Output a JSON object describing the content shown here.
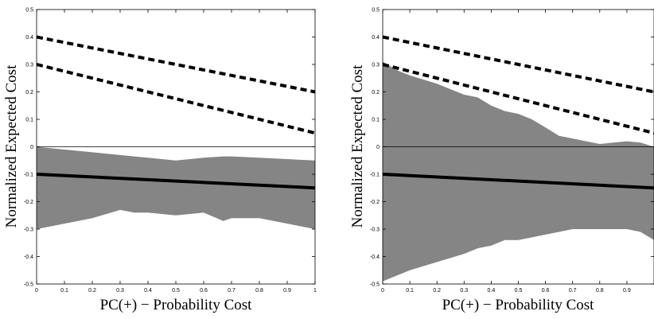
{
  "chart_data": [
    {
      "type": "line",
      "xlabel": "PC(+) − Probability Cost",
      "ylabel": "Normalized Expected Cost",
      "xlim": [
        0,
        1
      ],
      "ylim": [
        -0.5,
        0.5
      ],
      "xticks": [
        "0",
        "0.1",
        "0.2",
        "0.3",
        "0.4",
        "0.5",
        "0.6",
        "0.7",
        "0.8",
        "0.9",
        "1"
      ],
      "yticks": [
        "-0.5",
        "-0.4",
        "-0.3",
        "-0.2",
        "-0.1",
        "0",
        "0.1",
        "0.2",
        "0.3",
        "0.4",
        "0.5"
      ],
      "grid": false,
      "legend": "none",
      "colors": {
        "band": "#858585",
        "lines": "#000000"
      },
      "series": [
        {
          "style": "dashed",
          "x": [
            0,
            1
          ],
          "y": [
            0.4,
            0.2
          ]
        },
        {
          "style": "dashed",
          "x": [
            0,
            1
          ],
          "y": [
            0.3,
            0.05
          ]
        },
        {
          "style": "solid-thick",
          "x": [
            0,
            1
          ],
          "y": [
            -0.1,
            -0.15
          ]
        },
        {
          "style": "solid-thin",
          "x": [
            0,
            1
          ],
          "y": [
            0,
            0
          ]
        }
      ],
      "band": {
        "x": [
          0,
          0.1,
          0.2,
          0.3,
          0.35,
          0.4,
          0.5,
          0.6,
          0.67,
          0.7,
          0.8,
          0.9,
          1.0
        ],
        "upper": [
          0,
          -0.01,
          -0.02,
          -0.03,
          -0.035,
          -0.04,
          -0.05,
          -0.04,
          -0.035,
          -0.035,
          -0.04,
          -0.045,
          -0.05
        ],
        "lower": [
          -0.3,
          -0.28,
          -0.26,
          -0.23,
          -0.24,
          -0.24,
          -0.25,
          -0.24,
          -0.27,
          -0.26,
          -0.26,
          -0.28,
          -0.3
        ]
      }
    },
    {
      "type": "line",
      "xlabel": "PC(+) − Probability Cost",
      "ylabel": "Normalized Expected Cost",
      "xlim": [
        0,
        1
      ],
      "ylim": [
        -0.5,
        0.5
      ],
      "xticks": [
        "0",
        "0.1",
        "0.2",
        "0.3",
        "0.4",
        "0.5",
        "0.6",
        "0.7",
        "0.8",
        "0.9"
      ],
      "yticks": [
        "-0.5",
        "-0.4",
        "-0.3",
        "-0.2",
        "-0.1",
        "0",
        "0.1",
        "0.2",
        "0.3",
        "0.4",
        "0.5"
      ],
      "grid": false,
      "legend": "none",
      "colors": {
        "band": "#858585",
        "lines": "#000000"
      },
      "series": [
        {
          "style": "dashed",
          "x": [
            0,
            1
          ],
          "y": [
            0.4,
            0.2
          ]
        },
        {
          "style": "dashed",
          "x": [
            0,
            1
          ],
          "y": [
            0.3,
            0.05
          ]
        },
        {
          "style": "solid-thick",
          "x": [
            0,
            1
          ],
          "y": [
            -0.1,
            -0.15
          ]
        },
        {
          "style": "solid-thin",
          "x": [
            0,
            1
          ],
          "y": [
            0,
            0
          ]
        }
      ],
      "band": {
        "x": [
          0,
          0.05,
          0.1,
          0.2,
          0.3,
          0.35,
          0.4,
          0.45,
          0.5,
          0.55,
          0.6,
          0.65,
          0.7,
          0.75,
          0.8,
          0.85,
          0.9,
          0.95,
          1.0
        ],
        "upper": [
          0.31,
          0.28,
          0.26,
          0.23,
          0.19,
          0.18,
          0.15,
          0.13,
          0.12,
          0.1,
          0.07,
          0.04,
          0.03,
          0.02,
          0.01,
          0.015,
          0.02,
          0.015,
          0.0
        ],
        "lower": [
          -0.49,
          -0.47,
          -0.45,
          -0.42,
          -0.39,
          -0.37,
          -0.36,
          -0.34,
          -0.34,
          -0.33,
          -0.32,
          -0.31,
          -0.3,
          -0.3,
          -0.3,
          -0.3,
          -0.3,
          -0.31,
          -0.34
        ]
      }
    }
  ]
}
